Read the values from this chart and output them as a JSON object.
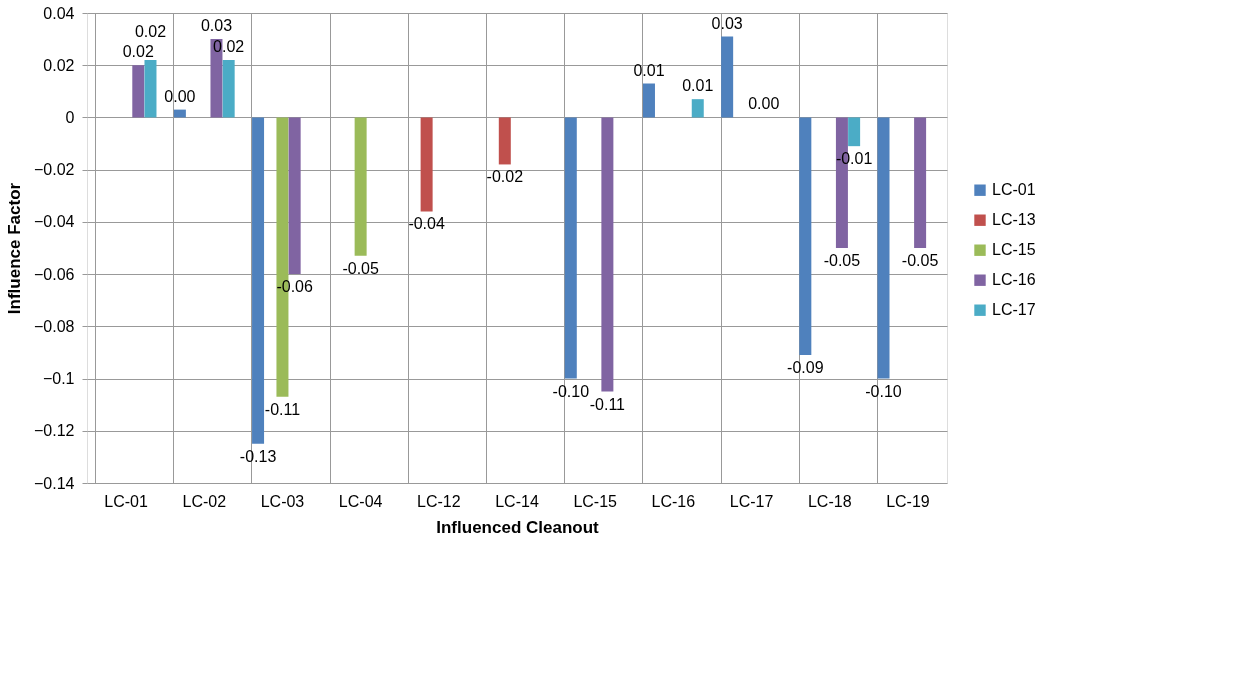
{
  "chart_data": {
    "type": "bar",
    "xlabel": "Influenced Cleanout",
    "ylabel": "Influence Factor",
    "categories": [
      "LC-01",
      "LC-02",
      "LC-03",
      "LC-04",
      "LC-12",
      "LC-14",
      "LC-15",
      "LC-16",
      "LC-17",
      "LC-18",
      "LC-19"
    ],
    "series": [
      {
        "name": "LC-01",
        "color": "#4f81bd",
        "values": [
          null,
          0.003,
          -0.125,
          null,
          null,
          null,
          -0.1,
          0.013,
          0.031,
          -0.091,
          -0.1
        ],
        "value_labels": [
          null,
          "0.00",
          "-0.13",
          null,
          null,
          null,
          "-0.10",
          "0.01",
          "0.03",
          "-0.09",
          "-0.10"
        ]
      },
      {
        "name": "LC-13",
        "color": "#c0504d",
        "values": [
          null,
          null,
          null,
          null,
          -0.036,
          -0.018,
          null,
          null,
          null,
          null,
          null
        ],
        "value_labels": [
          null,
          null,
          null,
          null,
          "-0.04",
          "-0.02",
          null,
          null,
          null,
          null,
          null
        ]
      },
      {
        "name": "LC-15",
        "color": "#9bbb59",
        "values": [
          null,
          null,
          -0.107,
          -0.053,
          null,
          null,
          null,
          null,
          null,
          null,
          null
        ],
        "value_labels": [
          null,
          null,
          "-0.11",
          "-0.05",
          null,
          null,
          null,
          null,
          null,
          null,
          null
        ]
      },
      {
        "name": "LC-16",
        "color": "#8064a2",
        "values": [
          0.02,
          0.03,
          -0.06,
          null,
          null,
          null,
          -0.105,
          null,
          0.0,
          -0.05,
          -0.05
        ],
        "value_labels": [
          "0.02",
          "0.03",
          "-0.06",
          null,
          null,
          null,
          "-0.11",
          null,
          "0.00",
          "-0.05",
          "-0.05"
        ]
      },
      {
        "name": "LC-17",
        "color": "#4bacc6",
        "values": [
          0.022,
          0.022,
          null,
          null,
          null,
          null,
          null,
          0.007,
          null,
          -0.011,
          null
        ],
        "value_labels": [
          "0.02",
          "0.02",
          null,
          null,
          null,
          null,
          null,
          "0.01",
          null,
          "-0.01",
          null
        ]
      }
    ],
    "ylim": [
      -0.14,
      0.04
    ],
    "yticks": [
      0.04,
      0.02,
      0,
      -0.02,
      -0.04,
      -0.06,
      -0.08,
      -0.1,
      -0.12,
      -0.14
    ],
    "grid": true,
    "legend": "right"
  }
}
